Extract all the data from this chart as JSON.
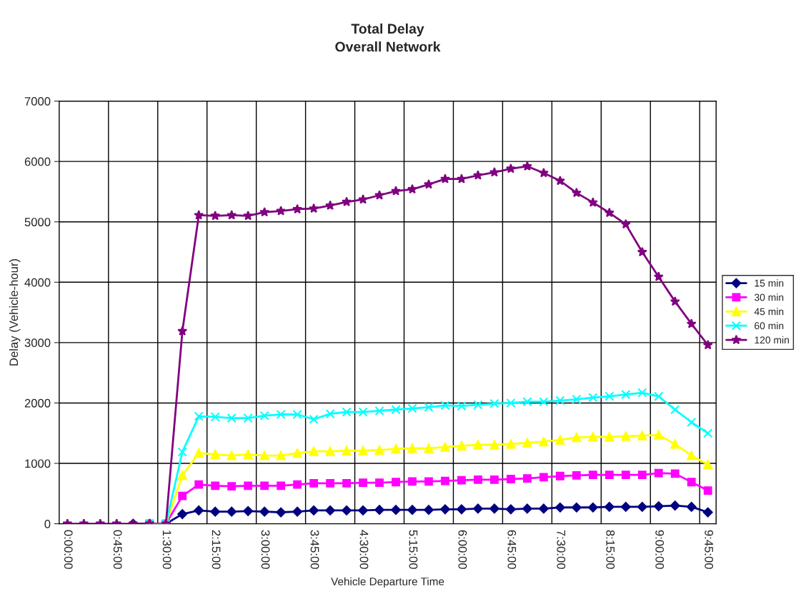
{
  "chart_data": {
    "type": "line",
    "title": "Total Delay",
    "subtitle": "Overall Network",
    "xlabel": "Vehicle Departure Time",
    "ylabel": "Delay (Vehicle-hour)",
    "categories": [
      "0:00:00",
      null,
      null,
      "0:45:00",
      null,
      null,
      "1:30:00",
      null,
      null,
      "2:15:00",
      null,
      null,
      "3:00:00",
      null,
      null,
      "3:45:00",
      null,
      null,
      "4:30:00",
      null,
      null,
      "5:15:00",
      null,
      null,
      "6:00:00",
      null,
      null,
      "6:45:00",
      null,
      null,
      "7:30:00",
      null,
      null,
      "8:15:00",
      null,
      null,
      "9:00:00",
      null,
      null,
      "9:45:00"
    ],
    "series": [
      {
        "name": "15 min",
        "color": "#000080",
        "marker": "diamond",
        "values": [
          null,
          null,
          null,
          null,
          0,
          0,
          0,
          160,
          220,
          200,
          200,
          210,
          200,
          190,
          200,
          220,
          220,
          220,
          220,
          230,
          230,
          230,
          230,
          240,
          240,
          250,
          250,
          240,
          250,
          250,
          270,
          270,
          270,
          280,
          280,
          280,
          290,
          300,
          280,
          190
        ]
      },
      {
        "name": "30 min",
        "color": "#ff00ff",
        "marker": "square",
        "values": [
          null,
          null,
          null,
          null,
          null,
          0,
          0,
          460,
          650,
          630,
          620,
          630,
          630,
          630,
          650,
          670,
          670,
          670,
          680,
          680,
          690,
          700,
          700,
          710,
          720,
          730,
          730,
          740,
          750,
          770,
          790,
          800,
          810,
          810,
          810,
          810,
          840,
          830,
          690,
          550
        ]
      },
      {
        "name": "45 min",
        "color": "#ffff00",
        "marker": "triangle",
        "values": [
          null,
          null,
          null,
          null,
          null,
          0,
          0,
          800,
          1170,
          1150,
          1130,
          1150,
          1130,
          1130,
          1170,
          1200,
          1200,
          1210,
          1210,
          1220,
          1240,
          1250,
          1250,
          1270,
          1290,
          1310,
          1310,
          1320,
          1340,
          1360,
          1390,
          1430,
          1440,
          1440,
          1450,
          1460,
          1470,
          1320,
          1130,
          980
        ]
      },
      {
        "name": "60 min",
        "color": "#00ffff",
        "marker": "cross",
        "values": [
          null,
          null,
          null,
          null,
          null,
          0,
          0,
          1190,
          1780,
          1770,
          1750,
          1750,
          1790,
          1810,
          1810,
          1730,
          1820,
          1850,
          1850,
          1870,
          1890,
          1910,
          1930,
          1960,
          1950,
          1970,
          1990,
          2000,
          2020,
          2020,
          2040,
          2060,
          2090,
          2110,
          2140,
          2170,
          2110,
          1890,
          1680,
          1500
        ]
      },
      {
        "name": "120 min",
        "color": "#800080",
        "marker": "star",
        "values": [
          0,
          0,
          0,
          0,
          0,
          0,
          0,
          3190,
          5110,
          5100,
          5110,
          5100,
          5160,
          5180,
          5210,
          5220,
          5270,
          5330,
          5370,
          5440,
          5510,
          5540,
          5620,
          5710,
          5710,
          5770,
          5820,
          5880,
          5920,
          5810,
          5680,
          5480,
          5320,
          5150,
          4960,
          4500,
          4090,
          3680,
          3310,
          2960
        ]
      }
    ],
    "ylim": [
      0,
      7000
    ],
    "yticks": [
      0,
      1000,
      2000,
      3000,
      4000,
      5000,
      6000,
      7000
    ],
    "grid": true,
    "legend": "right",
    "line_style": "solid"
  }
}
